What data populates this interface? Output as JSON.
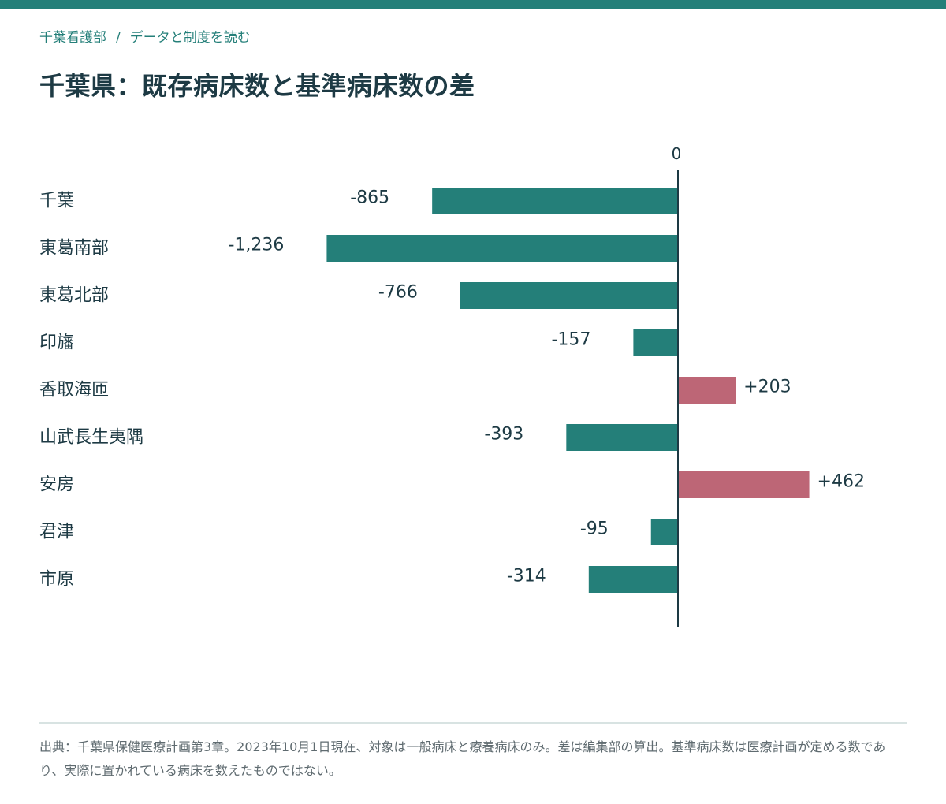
{
  "header": {
    "breadcrumb_site": "千葉看護部",
    "breadcrumb_separator": "/",
    "breadcrumb_section": "データと制度を読む",
    "title": "千葉県：既存病床数と基準病床数の差"
  },
  "colors": {
    "accent": "#247f79",
    "negative_bar": "#247f79",
    "positive_bar": "#bd6676",
    "text": "#1d3a44",
    "footnote": "#5f6b70"
  },
  "chart_data": {
    "type": "bar",
    "orientation": "horizontal",
    "categories": [
      "千葉",
      "東葛南部",
      "東葛北部",
      "印旛",
      "香取海匝",
      "山武長生夷隅",
      "安房",
      "君津",
      "市原"
    ],
    "values": [
      -865,
      -1236,
      -766,
      -157,
      203,
      -393,
      462,
      -95,
      -314
    ],
    "value_labels": [
      "-865",
      "-1,236",
      "-766",
      "-157",
      "+203",
      "-393",
      "+462",
      "-95",
      "-314"
    ],
    "zero_label": "0",
    "title": "",
    "xlabel": "",
    "ylabel": "",
    "xlim": [
      -1236,
      462
    ],
    "grid": false,
    "legend": "none"
  },
  "footer": {
    "source": "出典：千葉県保健医療計画第3章。2023年10月1日現在、対象は一般病床と療養病床のみ。差は編集部の算出。基準病床数は医療計画が定める数であり、実際に置かれている病床を数えたものではない。"
  }
}
